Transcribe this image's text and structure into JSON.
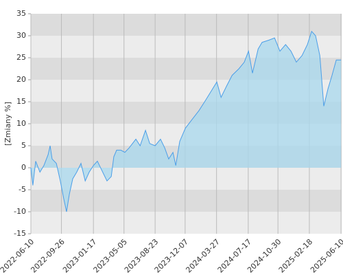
{
  "chart_data": {
    "type": "area",
    "y_label": "[Zmiany %]",
    "x": [
      "2022-06-10",
      "2022-06-17",
      "2022-06-27",
      "2022-07-12",
      "2022-07-26",
      "2022-08-10",
      "2022-08-17",
      "2022-08-24",
      "2022-09-08",
      "2022-09-22",
      "2022-10-04",
      "2022-10-14",
      "2022-10-24",
      "2022-11-05",
      "2022-11-19",
      "2022-12-04",
      "2022-12-19",
      "2023-01-02",
      "2023-01-17",
      "2023-01-31",
      "2023-02-15",
      "2023-03-06",
      "2023-03-21",
      "2023-03-30",
      "2023-04-09",
      "2023-04-24",
      "2023-05-08",
      "2023-05-23",
      "2023-06-16",
      "2023-07-01",
      "2023-07-20",
      "2023-08-04",
      "2023-08-23",
      "2023-09-11",
      "2023-09-26",
      "2023-10-10",
      "2023-10-25",
      "2023-11-04",
      "2023-11-18",
      "2023-12-08",
      "2024-01-01",
      "2024-01-25",
      "2024-02-14",
      "2024-03-09",
      "2024-03-28",
      "2024-04-12",
      "2024-05-01",
      "2024-05-21",
      "2024-06-14",
      "2024-07-03",
      "2024-07-18",
      "2024-08-01",
      "2024-08-21",
      "2024-09-04",
      "2024-09-28",
      "2024-10-18",
      "2024-11-06",
      "2024-11-26",
      "2024-12-15",
      "2025-01-03",
      "2025-01-23",
      "2025-02-11",
      "2025-02-26",
      "2025-03-12",
      "2025-03-27",
      "2025-04-10",
      "2025-04-25",
      "2025-05-09",
      "2025-05-24",
      "2025-06-10"
    ],
    "series": [
      {
        "name": "Zmiany",
        "color": "#4a9ee8",
        "fill": "#a8d8ee",
        "values": [
          0,
          -4,
          1.5,
          -1,
          0.5,
          3,
          5,
          2,
          1,
          -3,
          -7,
          -10,
          -6,
          -2.5,
          -1,
          1,
          -3,
          -1,
          0.5,
          1.5,
          -0.5,
          -3,
          -2,
          2.5,
          4,
          4,
          3.5,
          4.5,
          6.5,
          5,
          8.5,
          5.5,
          5,
          6.5,
          4.5,
          2,
          3.5,
          0.5,
          6,
          9,
          11,
          13,
          15,
          17.5,
          19.5,
          16,
          18.5,
          21,
          22.5,
          24,
          26.5,
          21.5,
          27,
          28.5,
          29,
          29.5,
          26.5,
          28,
          26.5,
          24,
          25.5,
          28,
          31,
          30,
          25.5,
          14,
          18,
          21,
          24.5,
          24.5
        ]
      }
    ],
    "xlim": [
      "2022-06-10",
      "2025-06-12"
    ],
    "xticks": [
      "2022-06-10",
      "2022-09-26",
      "2023-01-17",
      "2023-05-05",
      "2023-08-23",
      "2023-12-07",
      "2024-03-27",
      "2024-07-17",
      "2024-10-30",
      "2025-02-18",
      "2025-06-10"
    ],
    "ylim": [
      -15,
      35
    ],
    "yticks": [
      -15,
      -10,
      -5,
      0,
      5,
      10,
      15,
      20,
      25,
      30,
      35
    ],
    "grid": true
  }
}
